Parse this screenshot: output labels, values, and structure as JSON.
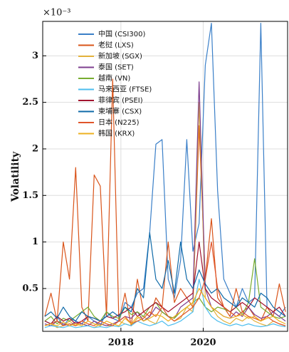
{
  "chart_data": {
    "type": "line",
    "y_label": "Volatility",
    "y_scale_label": "×10⁻³",
    "x": [
      2016.15,
      2016.3,
      2016.45,
      2016.6,
      2016.75,
      2016.9,
      2017.05,
      2017.2,
      2017.35,
      2017.5,
      2017.65,
      2017.8,
      2017.95,
      2018.1,
      2018.25,
      2018.4,
      2018.55,
      2018.7,
      2018.85,
      2019,
      2019.15,
      2019.3,
      2019.45,
      2019.6,
      2019.75,
      2019.9,
      2020.05,
      2020.2,
      2020.35,
      2020.5,
      2020.65,
      2020.8,
      2020.95,
      2021.1,
      2021.25,
      2021.4,
      2021.55,
      2021.7,
      2021.85,
      2022
    ],
    "xlim": [
      2016.1,
      2022.05
    ],
    "xticks": [
      2018,
      2020
    ],
    "ylim": [
      0.04,
      3.37
    ],
    "yticks": [
      0.5,
      1,
      1.5,
      2,
      2.5,
      3
    ],
    "grid": true,
    "legend": "upper left",
    "series": [
      {
        "name": "中国 (CSI300)",
        "color": "#3a7fc8",
        "values": [
          0.15,
          0.12,
          0.2,
          0.1,
          0.18,
          0.15,
          0.12,
          0.2,
          0.15,
          0.1,
          0.25,
          0.18,
          0.15,
          0.35,
          0.3,
          0.45,
          0.5,
          1.1,
          2.05,
          2.1,
          0.6,
          0.4,
          0.8,
          2.1,
          0.9,
          1.2,
          2.9,
          3.35,
          1.55,
          0.6,
          0.45,
          0.3,
          0.5,
          0.35,
          0.4,
          3.35,
          0.3,
          0.25,
          0.2,
          0.3
        ]
      },
      {
        "name": "老挝 (LXS)",
        "color": "#d9541a",
        "values": [
          0.2,
          0.45,
          0.15,
          1.0,
          0.6,
          1.8,
          0.3,
          0.15,
          1.72,
          1.6,
          0.2,
          2.75,
          0.15,
          0.45,
          0.1,
          0.6,
          0.25,
          0.2,
          0.4,
          0.3,
          1.0,
          0.35,
          0.5,
          0.4,
          0.3,
          2.25,
          0.6,
          1.25,
          0.4,
          0.3,
          0.2,
          0.5,
          0.25,
          0.3,
          0.2,
          0.15,
          0.3,
          0.2,
          0.55,
          0.25
        ]
      },
      {
        "name": "新加坡 (SGX)",
        "color": "#e3b23c",
        "values": [
          0.1,
          0.12,
          0.08,
          0.1,
          0.15,
          0.1,
          0.12,
          0.1,
          0.08,
          0.12,
          0.1,
          0.1,
          0.15,
          0.12,
          0.1,
          0.18,
          0.2,
          0.15,
          0.12,
          0.25,
          0.2,
          0.15,
          0.18,
          0.3,
          0.25,
          2.5,
          0.4,
          0.3,
          0.2,
          0.15,
          0.12,
          0.18,
          0.15,
          0.2,
          0.15,
          0.12,
          0.1,
          0.15,
          0.12,
          0.1
        ]
      },
      {
        "name": "泰国 (SET)",
        "color": "#7e3f8f",
        "values": [
          0.12,
          0.1,
          0.15,
          0.12,
          0.1,
          0.14,
          0.12,
          0.1,
          0.15,
          0.12,
          0.1,
          0.12,
          0.15,
          0.2,
          0.18,
          0.25,
          0.15,
          0.2,
          0.3,
          0.25,
          0.2,
          0.18,
          0.3,
          0.35,
          0.4,
          2.72,
          0.5,
          0.3,
          0.25,
          0.2,
          0.18,
          0.25,
          0.2,
          0.3,
          0.22,
          0.18,
          0.2,
          0.25,
          0.2,
          0.15
        ]
      },
      {
        "name": "越南 (VN)",
        "color": "#77ac30",
        "values": [
          0.15,
          0.2,
          0.12,
          0.18,
          0.15,
          0.2,
          0.25,
          0.3,
          0.2,
          0.15,
          0.25,
          0.2,
          0.18,
          0.3,
          0.22,
          0.25,
          0.2,
          0.3,
          0.35,
          0.25,
          0.2,
          0.18,
          0.25,
          0.3,
          0.35,
          0.4,
          0.3,
          0.25,
          0.3,
          0.28,
          0.25,
          0.3,
          0.22,
          0.35,
          0.82,
          0.3,
          0.25,
          0.2,
          0.18,
          0.2
        ]
      },
      {
        "name": "马来西亚 (FTSE)",
        "color": "#4dbeee",
        "values": [
          0.08,
          0.1,
          0.09,
          0.08,
          0.1,
          0.08,
          0.09,
          0.1,
          0.08,
          0.09,
          0.08,
          0.1,
          0.09,
          0.12,
          0.1,
          0.15,
          0.12,
          0.1,
          0.12,
          0.15,
          0.1,
          0.12,
          0.15,
          0.2,
          0.25,
          0.6,
          0.3,
          0.2,
          0.15,
          0.12,
          0.1,
          0.12,
          0.1,
          0.12,
          0.1,
          0.09,
          0.1,
          0.12,
          0.1,
          0.09
        ]
      },
      {
        "name": "菲律宾 (PSEI)",
        "color": "#a2142f",
        "values": [
          0.15,
          0.12,
          0.2,
          0.15,
          0.18,
          0.12,
          0.15,
          0.2,
          0.18,
          0.15,
          0.2,
          0.18,
          0.22,
          0.25,
          0.3,
          0.2,
          0.25,
          0.3,
          0.35,
          0.3,
          0.25,
          0.3,
          0.35,
          0.4,
          0.45,
          1.0,
          0.5,
          0.4,
          0.35,
          0.3,
          0.25,
          0.3,
          0.35,
          0.3,
          0.4,
          0.35,
          0.3,
          0.25,
          0.3,
          0.2
        ]
      },
      {
        "name": "柬埔寨 (CSX)",
        "color": "#0f6aa8",
        "values": [
          0.2,
          0.25,
          0.18,
          0.3,
          0.2,
          0.15,
          0.25,
          0.2,
          0.18,
          0.15,
          0.2,
          0.25,
          0.2,
          0.3,
          0.25,
          0.5,
          0.4,
          1.1,
          0.6,
          0.5,
          0.8,
          0.45,
          1.0,
          0.6,
          0.5,
          0.7,
          0.55,
          0.45,
          0.5,
          0.4,
          0.35,
          0.3,
          0.4,
          0.35,
          0.3,
          0.45,
          0.4,
          0.3,
          0.25,
          0.2
        ]
      },
      {
        "name": "日本 (N225)",
        "color": "#e0552a",
        "values": [
          0.1,
          0.12,
          0.15,
          0.1,
          0.12,
          0.1,
          0.15,
          0.12,
          0.1,
          0.15,
          0.12,
          0.1,
          0.15,
          0.2,
          0.12,
          0.15,
          0.18,
          0.25,
          0.2,
          0.3,
          0.2,
          0.15,
          0.2,
          0.25,
          0.3,
          0.4,
          0.6,
          1.0,
          0.5,
          0.3,
          0.25,
          0.2,
          0.25,
          0.2,
          0.18,
          0.15,
          0.2,
          0.15,
          0.12,
          0.1
        ]
      },
      {
        "name": "韩国 (KRX)",
        "color": "#edb120",
        "values": [
          0.1,
          0.12,
          0.1,
          0.14,
          0.1,
          0.12,
          0.1,
          0.15,
          0.12,
          0.1,
          0.15,
          0.12,
          0.1,
          0.18,
          0.12,
          0.2,
          0.15,
          0.18,
          0.22,
          0.2,
          0.15,
          0.2,
          0.25,
          0.3,
          0.35,
          0.5,
          0.4,
          0.3,
          0.25,
          0.2,
          0.18,
          0.2,
          0.22,
          0.18,
          0.2,
          0.15,
          0.18,
          0.2,
          0.15,
          0.12
        ]
      }
    ]
  }
}
